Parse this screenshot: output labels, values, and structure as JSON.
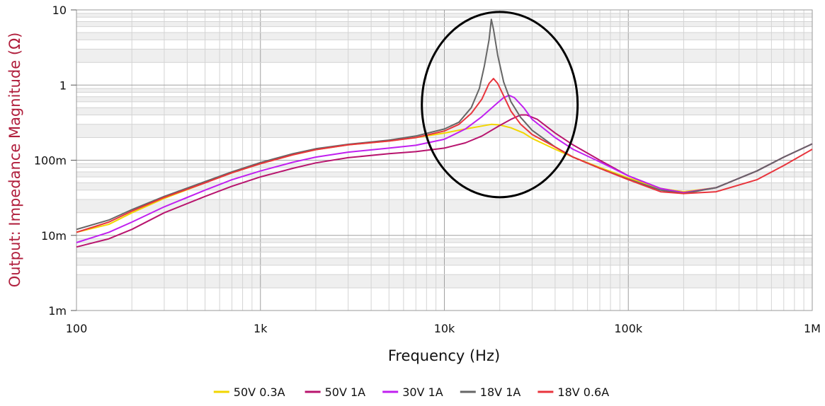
{
  "chart_data": {
    "type": "line",
    "title": "",
    "xlabel": "Frequency (Hz)",
    "ylabel": "Output: Impedance Magnitude (Ω)",
    "x_scale": "log",
    "y_scale": "log",
    "xlim": [
      100,
      1000000
    ],
    "ylim": [
      0.001,
      10
    ],
    "grid": true,
    "legend_position": "bottom",
    "x_ticks": [
      {
        "value": 100,
        "label": "100"
      },
      {
        "value": 1000,
        "label": "1k"
      },
      {
        "value": 10000,
        "label": "10k"
      },
      {
        "value": 100000,
        "label": "100k"
      },
      {
        "value": 1000000,
        "label": "1M"
      }
    ],
    "y_ticks": [
      {
        "value": 10,
        "label": "10"
      },
      {
        "value": 1,
        "label": "1"
      },
      {
        "value": 0.1,
        "label": "100m"
      },
      {
        "value": 0.01,
        "label": "10m"
      },
      {
        "value": 0.001,
        "label": "1m"
      }
    ],
    "annotations": [
      {
        "type": "ellipse",
        "center": [
          20000,
          0.55
        ],
        "note": "resonance peaks highlighted"
      }
    ],
    "series": [
      {
        "name": "50V 0.3A",
        "color": "#f2d600",
        "points": [
          [
            100,
            0.011
          ],
          [
            150,
            0.014
          ],
          [
            200,
            0.02
          ],
          [
            300,
            0.031
          ],
          [
            500,
            0.05
          ],
          [
            700,
            0.068
          ],
          [
            1000,
            0.09
          ],
          [
            1500,
            0.118
          ],
          [
            2000,
            0.138
          ],
          [
            3000,
            0.16
          ],
          [
            5000,
            0.18
          ],
          [
            7000,
            0.2
          ],
          [
            10000,
            0.23
          ],
          [
            13000,
            0.26
          ],
          [
            16000,
            0.285
          ],
          [
            18000,
            0.3
          ],
          [
            20000,
            0.295
          ],
          [
            23000,
            0.27
          ],
          [
            27000,
            0.23
          ],
          [
            30000,
            0.195
          ],
          [
            40000,
            0.14
          ],
          [
            50000,
            0.11
          ],
          [
            70000,
            0.08
          ],
          [
            100000,
            0.058
          ],
          [
            150000,
            0.042
          ],
          [
            200000,
            0.038
          ],
          [
            300000,
            0.043
          ],
          [
            500000,
            0.072
          ],
          [
            700000,
            0.11
          ],
          [
            1000000,
            0.165
          ]
        ]
      },
      {
        "name": "50V 1A",
        "color": "#b8146e",
        "points": [
          [
            100,
            0.007
          ],
          [
            150,
            0.009
          ],
          [
            200,
            0.012
          ],
          [
            300,
            0.02
          ],
          [
            500,
            0.033
          ],
          [
            700,
            0.045
          ],
          [
            1000,
            0.06
          ],
          [
            1500,
            0.078
          ],
          [
            2000,
            0.092
          ],
          [
            3000,
            0.108
          ],
          [
            5000,
            0.122
          ],
          [
            7000,
            0.13
          ],
          [
            10000,
            0.145
          ],
          [
            13000,
            0.17
          ],
          [
            16000,
            0.21
          ],
          [
            20000,
            0.29
          ],
          [
            23000,
            0.35
          ],
          [
            26000,
            0.4
          ],
          [
            28000,
            0.4
          ],
          [
            32000,
            0.35
          ],
          [
            40000,
            0.23
          ],
          [
            50000,
            0.16
          ],
          [
            70000,
            0.1
          ],
          [
            100000,
            0.062
          ],
          [
            150000,
            0.042
          ],
          [
            200000,
            0.037
          ],
          [
            300000,
            0.043
          ],
          [
            500000,
            0.072
          ],
          [
            700000,
            0.11
          ],
          [
            1000000,
            0.165
          ]
        ]
      },
      {
        "name": "30V 1A",
        "color": "#c020f0",
        "points": [
          [
            100,
            0.008
          ],
          [
            150,
            0.011
          ],
          [
            200,
            0.015
          ],
          [
            300,
            0.024
          ],
          [
            500,
            0.04
          ],
          [
            700,
            0.055
          ],
          [
            1000,
            0.072
          ],
          [
            1500,
            0.094
          ],
          [
            2000,
            0.11
          ],
          [
            3000,
            0.128
          ],
          [
            5000,
            0.145
          ],
          [
            7000,
            0.158
          ],
          [
            10000,
            0.19
          ],
          [
            13000,
            0.26
          ],
          [
            16000,
            0.38
          ],
          [
            19000,
            0.55
          ],
          [
            21000,
            0.68
          ],
          [
            22500,
            0.73
          ],
          [
            24000,
            0.68
          ],
          [
            27000,
            0.5
          ],
          [
            30000,
            0.35
          ],
          [
            40000,
            0.2
          ],
          [
            50000,
            0.14
          ],
          [
            70000,
            0.095
          ],
          [
            100000,
            0.062
          ],
          [
            150000,
            0.042
          ],
          [
            200000,
            0.037
          ],
          [
            300000,
            0.043
          ],
          [
            500000,
            0.072
          ],
          [
            700000,
            0.11
          ],
          [
            1000000,
            0.165
          ]
        ]
      },
      {
        "name": "18V 1A",
        "color": "#666666",
        "points": [
          [
            100,
            0.012
          ],
          [
            150,
            0.016
          ],
          [
            200,
            0.022
          ],
          [
            300,
            0.033
          ],
          [
            500,
            0.052
          ],
          [
            700,
            0.07
          ],
          [
            1000,
            0.093
          ],
          [
            1500,
            0.122
          ],
          [
            2000,
            0.142
          ],
          [
            3000,
            0.163
          ],
          [
            5000,
            0.185
          ],
          [
            7000,
            0.21
          ],
          [
            10000,
            0.26
          ],
          [
            12000,
            0.32
          ],
          [
            14000,
            0.5
          ],
          [
            15500,
            0.9
          ],
          [
            16500,
            1.8
          ],
          [
            17500,
            4.0
          ],
          [
            18000,
            7.5
          ],
          [
            18500,
            5.5
          ],
          [
            19500,
            2.5
          ],
          [
            21000,
            1.1
          ],
          [
            23000,
            0.6
          ],
          [
            26000,
            0.37
          ],
          [
            30000,
            0.25
          ],
          [
            40000,
            0.15
          ],
          [
            50000,
            0.11
          ],
          [
            70000,
            0.078
          ],
          [
            100000,
            0.056
          ],
          [
            150000,
            0.04
          ],
          [
            200000,
            0.036
          ],
          [
            300000,
            0.043
          ],
          [
            500000,
            0.072
          ],
          [
            700000,
            0.11
          ],
          [
            1000000,
            0.165
          ]
        ]
      },
      {
        "name": "18V 0.6A",
        "color": "#e8343c",
        "points": [
          [
            100,
            0.011
          ],
          [
            150,
            0.015
          ],
          [
            200,
            0.021
          ],
          [
            300,
            0.032
          ],
          [
            500,
            0.05
          ],
          [
            700,
            0.068
          ],
          [
            1000,
            0.09
          ],
          [
            1500,
            0.118
          ],
          [
            2000,
            0.138
          ],
          [
            3000,
            0.16
          ],
          [
            5000,
            0.18
          ],
          [
            7000,
            0.2
          ],
          [
            10000,
            0.245
          ],
          [
            12000,
            0.3
          ],
          [
            14000,
            0.42
          ],
          [
            16000,
            0.65
          ],
          [
            17500,
            1.05
          ],
          [
            18500,
            1.22
          ],
          [
            19500,
            1.05
          ],
          [
            21000,
            0.72
          ],
          [
            23000,
            0.45
          ],
          [
            26000,
            0.3
          ],
          [
            30000,
            0.22
          ],
          [
            40000,
            0.15
          ],
          [
            50000,
            0.11
          ],
          [
            70000,
            0.078
          ],
          [
            100000,
            0.055
          ],
          [
            150000,
            0.038
          ],
          [
            200000,
            0.036
          ],
          [
            300000,
            0.038
          ],
          [
            500000,
            0.055
          ],
          [
            700000,
            0.085
          ],
          [
            1000000,
            0.14
          ]
        ]
      }
    ]
  }
}
